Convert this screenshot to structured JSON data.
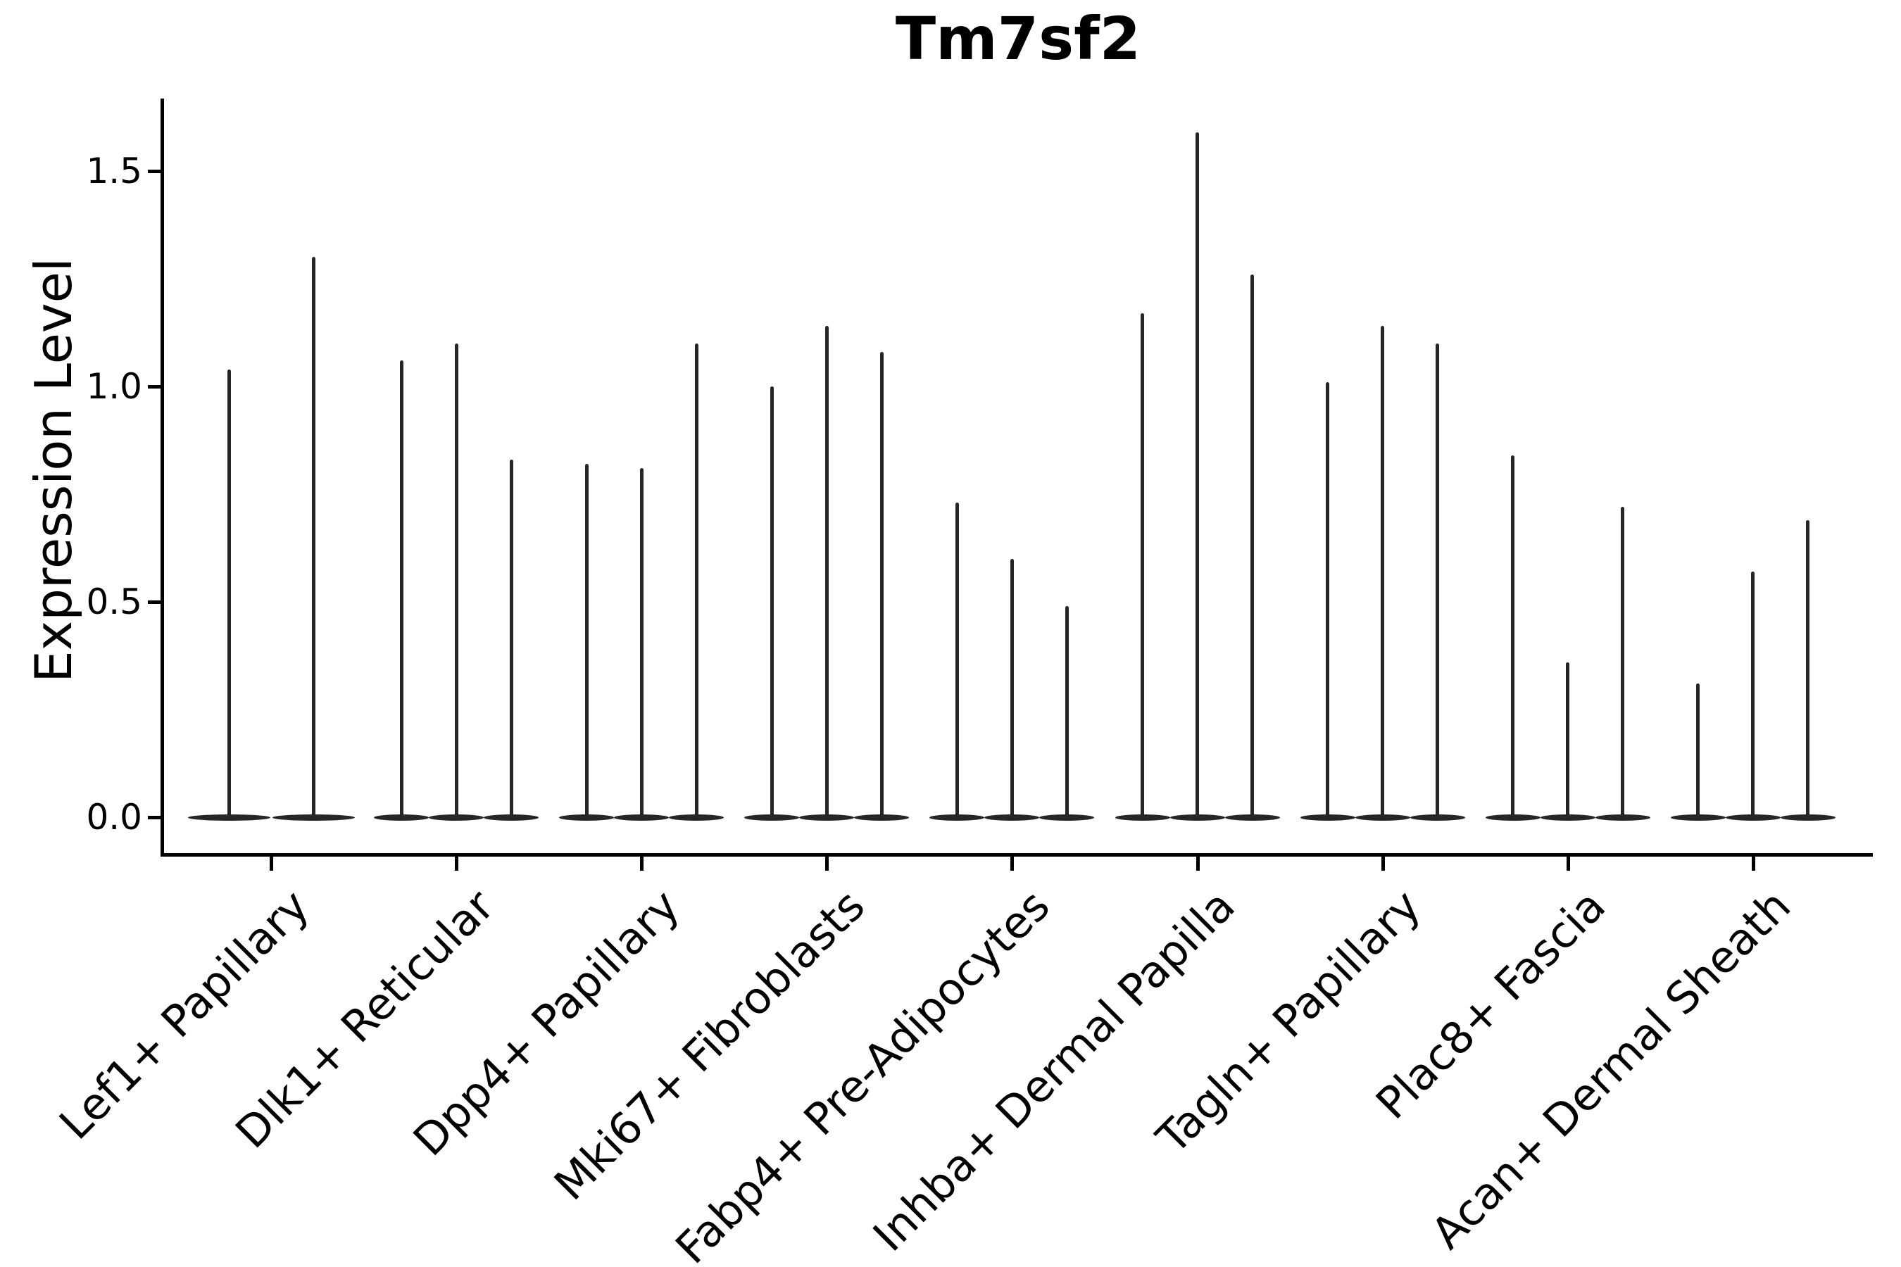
{
  "figure": {
    "title": "Tm7sf2",
    "y_axis_label": "Expression Level",
    "y_tick_labels": [
      "0.0",
      "0.5",
      "1.0",
      "1.5"
    ]
  },
  "chart_data": {
    "type": "violin",
    "title": "Tm7sf2",
    "xlabel": "",
    "ylabel": "Expression Level",
    "ylim": [
      -0.08,
      1.67
    ],
    "yticks": [
      0.0,
      0.5,
      1.0,
      1.5
    ],
    "grid": false,
    "legend_position": "none",
    "style": "needle-shaped single-cell expression violins, dark gray on white, x labels rotated 45deg",
    "colors": {
      "violin": "#262626",
      "axis": "#000000",
      "background": "#ffffff"
    },
    "categories": [
      "Lef1+ Papillary",
      "Dlk1+ Reticular",
      "Dpp4+ Papillary",
      "Mki67+ Fibroblasts",
      "Fabp4+ Pre-Adipocytes",
      "Inhba+ Dermal Papilla",
      "Tagln+ Papillary",
      "Plac8+ Fascia",
      "Acan+ Dermal Sheath"
    ],
    "groups": [
      {
        "label": "Lef1+ Papillary",
        "spike_heights": [
          1.04,
          1.3
        ]
      },
      {
        "label": "Dlk1+ Reticular",
        "spike_heights": [
          1.06,
          1.1,
          0.83
        ]
      },
      {
        "label": "Dpp4+ Papillary",
        "spike_heights": [
          0.82,
          0.81,
          1.1
        ]
      },
      {
        "label": "Mki67+ Fibroblasts",
        "spike_heights": [
          1.0,
          1.14,
          1.08
        ]
      },
      {
        "label": "Fabp4+ Pre-Adipocytes",
        "spike_heights": [
          0.73,
          0.6,
          0.49
        ]
      },
      {
        "label": "Inhba+ Dermal Papilla",
        "spike_heights": [
          1.17,
          1.59,
          1.26
        ]
      },
      {
        "label": "Tagln+ Papillary",
        "spike_heights": [
          1.01,
          1.14,
          1.1
        ]
      },
      {
        "label": "Plac8+ Fascia",
        "spike_heights": [
          0.84,
          0.36,
          0.72
        ]
      },
      {
        "label": "Acan+ Dermal Sheath",
        "spike_heights": [
          0.31,
          0.57,
          0.69
        ]
      }
    ]
  }
}
